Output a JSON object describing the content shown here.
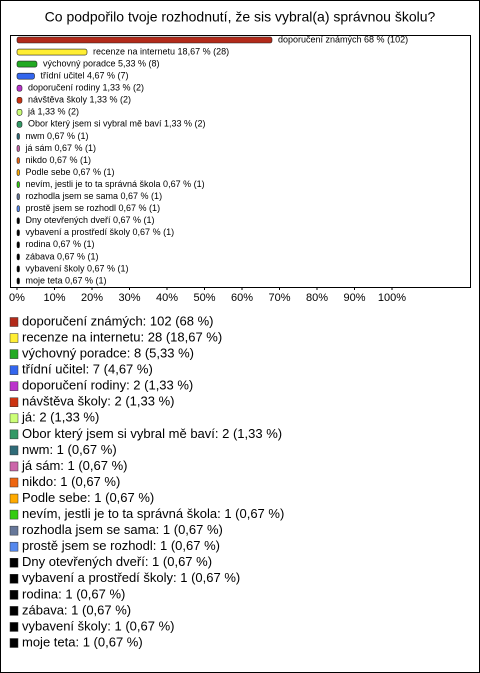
{
  "chart_data": {
    "type": "bar",
    "orientation": "horizontal",
    "title": "Co podpořilo tvoje rozhodnutí, že sis vybral(a) správnou školu?",
    "values": [
      68,
      18.67,
      5.33,
      4.67,
      1.33,
      1.33,
      1.33,
      1.33,
      0.67,
      0.67,
      0.67,
      0.67,
      0.67,
      0.67,
      0.67,
      0.67,
      0.67,
      0.67,
      0.67,
      0.67,
      0.67
    ],
    "value_labels": [
      "doporučení známých 68 % (102)",
      "recenze na internetu 18,67 % (28)",
      "výchovný poradce 5,33 % (8)",
      "třídní učitel 4,67 % (7)",
      "doporučení rodiny 1,33 % (2)",
      "návštěva školy 1,33 % (2)",
      "já 1,33 % (2)",
      "Obor který jsem si vybral mě baví 1,33 % (2)",
      "nwm 0,67 % (1)",
      "já sám 0,67 % (1)",
      "nikdo 0,67 % (1)",
      "Podle sebe 0,67 % (1)",
      "nevím, jestli je to ta správná škola 0,67 % (1)",
      "rozhodla jsem se sama 0,67 % (1)",
      "prostě jsem se rozhodl 0,67 % (1)",
      "Dny otevřených dveří 0,67 % (1)",
      "vybavení a prostředí školy 0,67 % (1)",
      "rodina 0,67 % (1)",
      "zábava 0,67 % (1)",
      "vybavení školy 0,67 % (1)",
      "moje teta 0,67 % (1)"
    ],
    "legend": [
      "doporučení známých: 102 (68 %)",
      "recenze na internetu: 28 (18,67 %)",
      "výchovný poradce: 8 (5,33 %)",
      "třídní učitel: 7 (4,67 %)",
      "doporučení rodiny: 2 (1,33 %)",
      "návštěva školy: 2 (1,33 %)",
      "já: 2 (1,33 %)",
      "Obor který jsem si vybral mě baví: 2 (1,33 %)",
      "nwm: 1 (0,67 %)",
      "já sám: 1 (0,67 %)",
      "nikdo: 1 (0,67 %)",
      "Podle sebe: 1 (0,67 %)",
      "nevím, jestli je to ta správná škola: 1 (0,67 %)",
      "rozhodla jsem se sama: 1 (0,67 %)",
      "prostě jsem se rozhodl: 1 (0,67 %)",
      "Dny otevřených dveří: 1 (0,67 %)",
      "vybavení a prostředí školy: 1 (0,67 %)",
      "rodina: 1 (0,67 %)",
      "zábava: 1 (0,67 %)",
      "vybavení školy: 1 (0,67 %)",
      "moje teta: 1 (0,67 %)"
    ],
    "colors": [
      "#b22a1a",
      "#ffee33",
      "#22aa22",
      "#3366ee",
      "#bb33cc",
      "#cc3311",
      "#ccff77",
      "#339966",
      "#2f6b78",
      "#cc66aa",
      "#ee6611",
      "#ffaa00",
      "#33cc11",
      "#667799",
      "#5588ee",
      "#000000",
      "#000000",
      "#000000",
      "#000000",
      "#000000",
      "#000000"
    ],
    "xlim": [
      0,
      100
    ],
    "xticks": [
      {
        "value": 0,
        "label": "0%"
      },
      {
        "value": 10,
        "label": "10%"
      },
      {
        "value": 20,
        "label": "20%"
      },
      {
        "value": 30,
        "label": "30%"
      },
      {
        "value": 40,
        "label": "40%"
      },
      {
        "value": 50,
        "label": "50%"
      },
      {
        "value": 60,
        "label": "60%"
      },
      {
        "value": 70,
        "label": "70%"
      },
      {
        "value": 80,
        "label": "80%"
      },
      {
        "value": 90,
        "label": "90%"
      },
      {
        "value": 100,
        "label": "100%"
      }
    ]
  }
}
